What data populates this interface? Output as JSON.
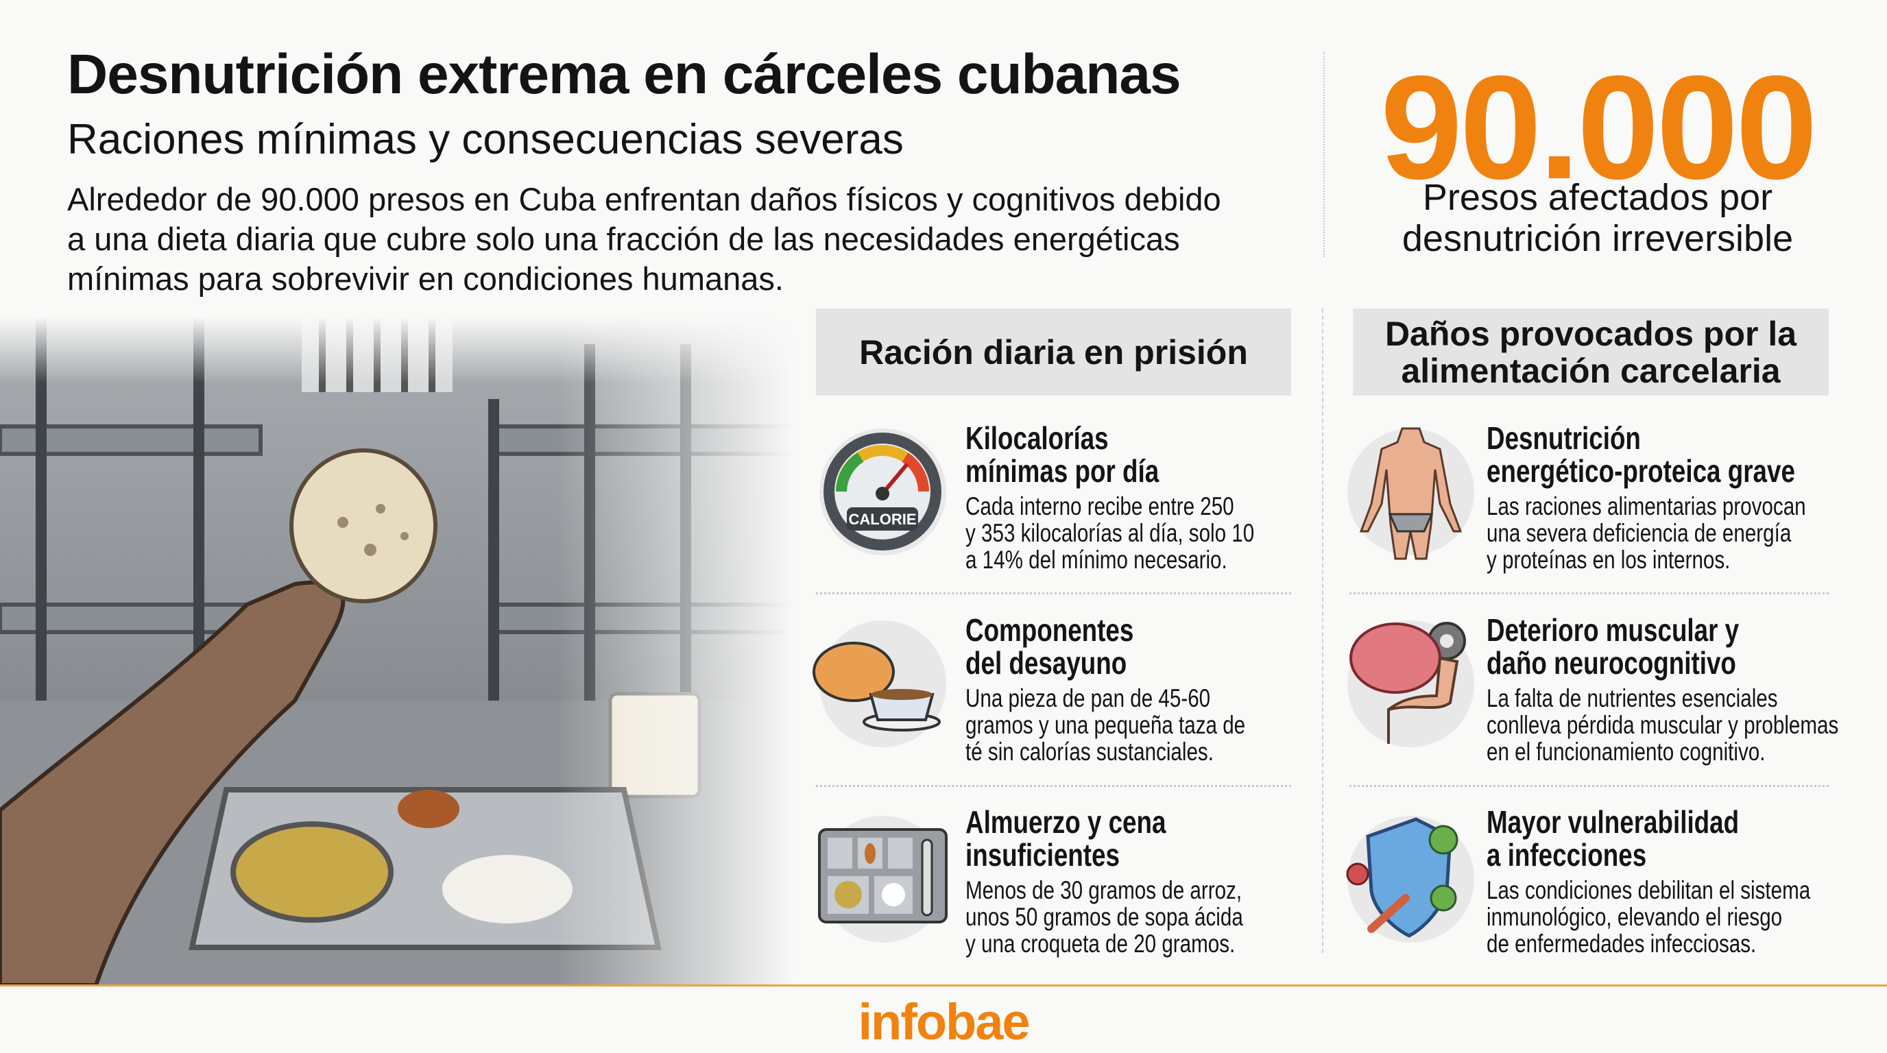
{
  "header": {
    "title": "Desnutrición extrema en cárceles cubanas",
    "subtitle": "Raciones mínimas y consecuencias severas",
    "intro": [
      "Alrededor de 90.000 presos en Cuba enfrentan daños físicos y cognitivos debido",
      "a una dieta diaria que cubre solo una fracción de las necesidades energéticas",
      "mínimas para sobrevivir en condiciones humanas."
    ]
  },
  "stat": {
    "value": "90.000",
    "caption": [
      "Presos afectados por",
      "desnutrición irreversible"
    ]
  },
  "colors": {
    "accent": "#F0820F",
    "header_bg": "#E4E4E4"
  },
  "ration": {
    "heading": "Ración diaria en prisión",
    "items": [
      {
        "icon": "calorie-gauge-icon",
        "badge": "CALORIE",
        "title": [
          "Kilocalorías",
          "mínimas por día"
        ],
        "body": [
          "Cada interno recibe entre 250",
          "y 353 kilocalorías al día, solo 10",
          "a 14% del mínimo necesario."
        ]
      },
      {
        "icon": "bread-and-tea-icon",
        "title": [
          "Componentes",
          "del desayuno"
        ],
        "body": [
          "Una pieza de pan de 45-60",
          "gramos y una pequeña taza de",
          "té sin calorías sustanciales."
        ]
      },
      {
        "icon": "food-tray-icon",
        "title": [
          "Almuerzo y cena",
          "insuficientes"
        ],
        "body": [
          "Menos de 30 gramos de arroz,",
          "unos 50 gramos de sopa ácida",
          "y una croqueta de 20 gramos."
        ]
      }
    ]
  },
  "damage": {
    "heading": [
      "Daños provocados por la",
      "alimentación carcelaria"
    ],
    "items": [
      {
        "icon": "emaciated-body-icon",
        "title": [
          "Desnutrición",
          "energético-proteica grave"
        ],
        "body": [
          "Las raciones alimentarias provocan",
          "una severa deficiencia de energía",
          "y proteínas en los internos."
        ]
      },
      {
        "icon": "brain-muscle-icon",
        "title": [
          "Deterioro muscular y",
          "daño neurocognitivo"
        ],
        "body": [
          "La falta de nutrientes esenciales",
          "conlleva pérdida muscular y problemas",
          "en el funcionamiento cognitivo."
        ]
      },
      {
        "icon": "shield-virus-icon",
        "title": [
          "Mayor vulnerabilidad",
          "a infecciones"
        ],
        "body": [
          "Las condiciones debilitan el sistema",
          "inmunológico, elevando el riesgo",
          "de enfermedades infecciosas."
        ]
      }
    ]
  },
  "footer": {
    "logo": "infobae"
  }
}
